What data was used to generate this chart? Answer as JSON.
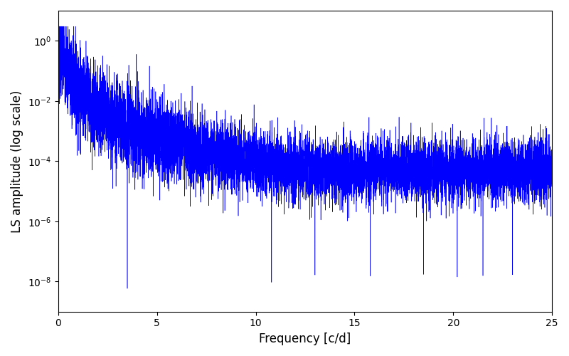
{
  "xlabel": "Frequency [c/d]",
  "ylabel": "LS amplitude (log scale)",
  "line_color": "#0000ff",
  "xlim": [
    0,
    25
  ],
  "ylim": [
    1e-09,
    10.0
  ],
  "figsize": [
    8.0,
    5.0
  ],
  "dpi": 100,
  "n_points": 10000,
  "seed": 7,
  "background_color": "#ffffff"
}
